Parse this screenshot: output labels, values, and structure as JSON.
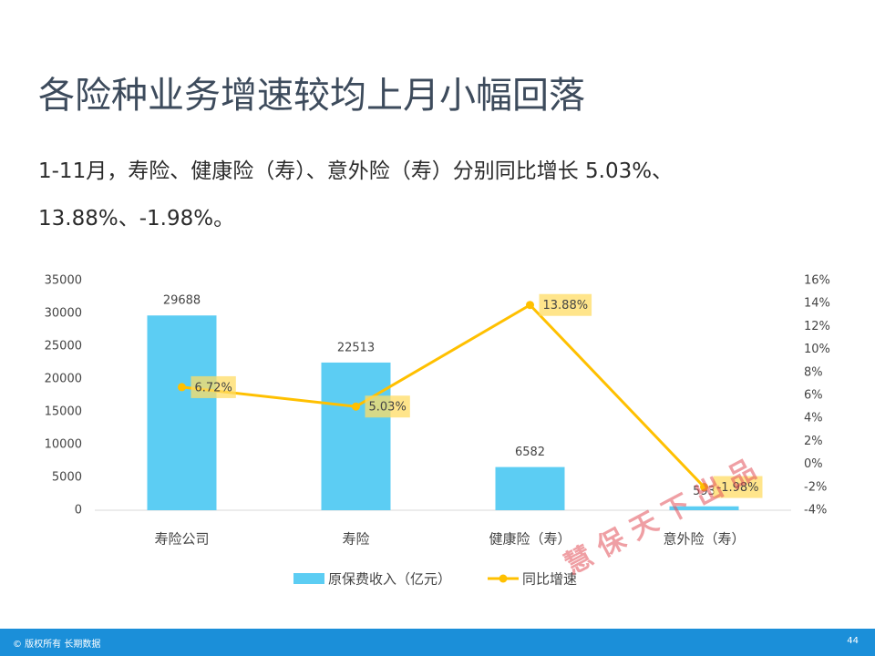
{
  "title": "各险种业务增速较均上月小幅回落",
  "subtitle": "1-11月，寿险、健康险（寿）、意外险（寿）分别同比增长 5.03%、13.88%、-1.98%。",
  "watermark": "慧 保 天 下 出 品",
  "footer": {
    "copyright": "© 版权所有 长期数据",
    "page": "44"
  },
  "chart_data": {
    "type": "bar",
    "categories": [
      "寿险公司",
      "寿险",
      "健康险（寿）",
      "意外险（寿）"
    ],
    "series": [
      {
        "name": "原保费收入（亿元）",
        "type": "bar",
        "color": "#5ccdf3",
        "values": [
          29688,
          22513,
          6582,
          593
        ]
      },
      {
        "name": "同比增速",
        "type": "line",
        "axis": "y2",
        "color": "#ffc000",
        "values": [
          6.72,
          5.03,
          13.88,
          -1.98
        ],
        "value_labels": [
          "6.72%",
          "5.03%",
          "13.88%",
          "-1.98%"
        ]
      }
    ],
    "ylim": [
      0,
      35000
    ],
    "yticks": [
      0,
      5000,
      10000,
      15000,
      20000,
      25000,
      30000,
      35000
    ],
    "y2lim": [
      -4,
      16
    ],
    "y2ticks": [
      {
        "value": -4,
        "label": "-4%"
      },
      {
        "value": -2,
        "label": "-2%"
      },
      {
        "value": 0,
        "label": "0%"
      },
      {
        "value": 2,
        "label": "2%"
      },
      {
        "value": 4,
        "label": "4%"
      },
      {
        "value": 6,
        "label": "6%"
      },
      {
        "value": 8,
        "label": "8%"
      },
      {
        "value": 10,
        "label": "10%"
      },
      {
        "value": 12,
        "label": "12%"
      },
      {
        "value": 14,
        "label": "14%"
      },
      {
        "value": 16,
        "label": "16%"
      }
    ],
    "grid": false,
    "legend": "bottom"
  }
}
